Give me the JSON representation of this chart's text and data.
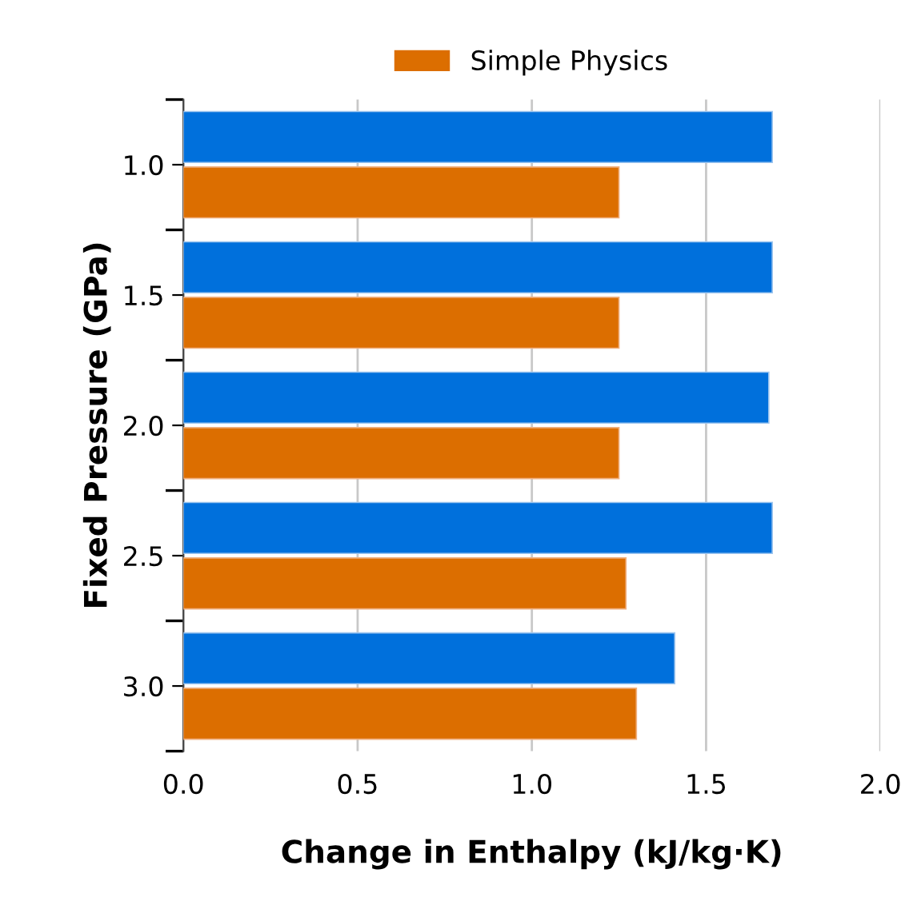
{
  "chart_data": {
    "type": "bar",
    "orientation": "horizontal",
    "xlabel": "Change in Enthalpy (kJ/kg·K)",
    "ylabel": "Fixed Pressure (GPa)",
    "categories": [
      "1.0",
      "1.5",
      "2.0",
      "2.5",
      "3.0"
    ],
    "series": [
      {
        "color": "#0070dc",
        "values": [
          1.69,
          1.69,
          1.68,
          1.69,
          1.41
        ]
      },
      {
        "name": "Simple Physics",
        "color": "#dc6e00",
        "values": [
          1.25,
          1.25,
          1.25,
          1.27,
          1.3
        ]
      }
    ],
    "xlim": [
      0,
      2.0
    ],
    "xticks": [
      {
        "value": 0,
        "label": "0.0"
      },
      0.5,
      {
        "value": 1,
        "label": "1.0"
      },
      1.5,
      {
        "value": 2,
        "label": "2.0"
      }
    ],
    "grid": "x",
    "legend": "top"
  }
}
